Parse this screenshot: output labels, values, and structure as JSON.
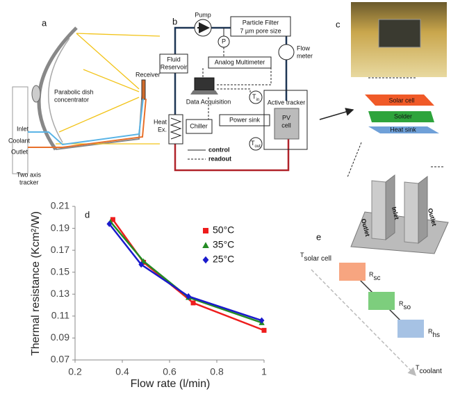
{
  "panels": {
    "a": {
      "label": "a",
      "receiver": "Receiver",
      "concentrator": [
        "Parabolic dish",
        "concentrator"
      ],
      "inlet": "Inlet",
      "coolant": "Coolant",
      "outlet": "Outlet",
      "tracker": [
        "Two axis",
        "tracker"
      ]
    },
    "b": {
      "label": "b",
      "pump": "Pump",
      "filter": [
        "Particle Filter",
        "7 µm pore size"
      ],
      "p": "P",
      "flow_meter": [
        "Flow",
        "meter"
      ],
      "reservoir": [
        "Fluid",
        "Reservoir"
      ],
      "multimeter": "Analog Multimeter",
      "daq": "Data Acquisition",
      "heat_ex": [
        "Heat",
        "Ex."
      ],
      "chiller": "Chiller",
      "power_sink": "Power sink",
      "active_tracker": "Active tracker",
      "pv_cell": [
        "PV",
        "cell"
      ],
      "t_in": {
        "symbol": "T",
        "sub": "in"
      },
      "t_out": {
        "symbol": "T",
        "sub": "out"
      },
      "control": "control",
      "readout": "readout"
    },
    "c": {
      "label": "c",
      "layers": [
        "Solar cell",
        "Solder",
        "Heat sink"
      ],
      "channels": [
        "Outlet",
        "Inlet",
        "Outlet"
      ]
    },
    "e": {
      "label": "e",
      "t_solar": {
        "symbol": "T",
        "sub": "solar cell"
      },
      "r_sc": {
        "symbol": "R",
        "sub": "sc"
      },
      "r_so": {
        "symbol": "R",
        "sub": "so"
      },
      "r_hs": {
        "symbol": "R",
        "sub": "hs"
      },
      "t_coolant": {
        "symbol": "T",
        "sub": "coolant"
      }
    }
  },
  "chart_data": {
    "type": "line",
    "panel_label": "d",
    "x_label": "Flow rate (l/min)",
    "y_label": "Thermal resistance (Kcm²/W)",
    "xlim": [
      0.2,
      1.0
    ],
    "xticks": [
      0.2,
      0.4,
      0.6,
      0.8,
      1
    ],
    "ylim": [
      0.07,
      0.21
    ],
    "yticks": [
      0.07,
      0.09,
      0.11,
      0.13,
      0.15,
      0.17,
      0.19,
      0.21
    ],
    "series": [
      {
        "name": "50°C",
        "color": "#ee1c1c",
        "marker": "square",
        "x": [
          0.36,
          0.49,
          0.7,
          1.0
        ],
        "values": [
          0.198,
          0.159,
          0.122,
          0.097
        ]
      },
      {
        "name": "35°C",
        "color": "#238b23",
        "marker": "triangle",
        "x": [
          0.35,
          0.49,
          0.68,
          0.99
        ],
        "values": [
          0.196,
          0.16,
          0.127,
          0.104
        ]
      },
      {
        "name": "25°C",
        "color": "#1a1acc",
        "marker": "diamond",
        "x": [
          0.345,
          0.48,
          0.68,
          0.99
        ],
        "values": [
          0.194,
          0.157,
          0.128,
          0.106
        ]
      }
    ]
  }
}
